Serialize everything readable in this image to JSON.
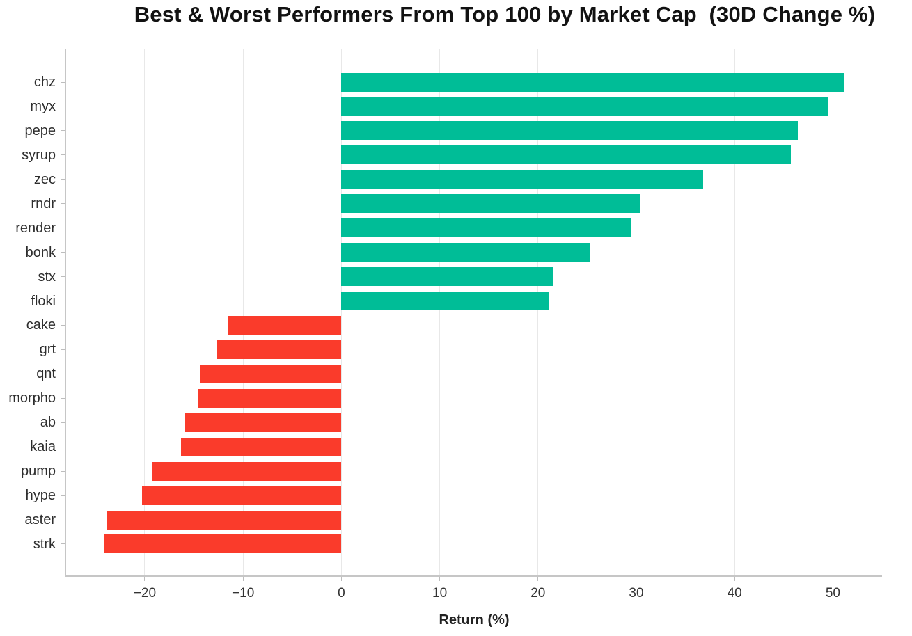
{
  "chart_data": {
    "type": "bar",
    "orientation": "horizontal",
    "title": "Best & Worst Performers From Top 100 by Market Cap  (30D Change %)",
    "xlabel": "Return (%)",
    "ylabel": "",
    "categories": [
      "chz",
      "myx",
      "pepe",
      "syrup",
      "zec",
      "rndr",
      "render",
      "bonk",
      "stx",
      "floki",
      "cake",
      "grt",
      "qnt",
      "morpho",
      "ab",
      "kaia",
      "pump",
      "hype",
      "aster",
      "strk"
    ],
    "values": [
      51.2,
      49.5,
      46.4,
      45.7,
      36.8,
      30.4,
      29.5,
      25.3,
      21.5,
      21.1,
      -11.6,
      -12.6,
      -14.4,
      -14.6,
      -15.9,
      -16.3,
      -19.2,
      -20.3,
      -23.9,
      -24.1
    ],
    "xlim": [
      -28,
      55
    ],
    "x_ticks": [
      -20,
      -10,
      0,
      10,
      20,
      30,
      40,
      50
    ],
    "x_tick_labels": [
      "−20",
      "−10",
      "0",
      "10",
      "20",
      "30",
      "40",
      "50"
    ],
    "grid": true,
    "legend": false,
    "colors": {
      "positive": "#00BD97",
      "negative": "#FA3B2B",
      "gridline": "#e8e8e8",
      "spine": "#c6c6c6",
      "tick_mark": "#bdbdbd",
      "tick_text": "#333333",
      "title_text": "#121212"
    }
  }
}
